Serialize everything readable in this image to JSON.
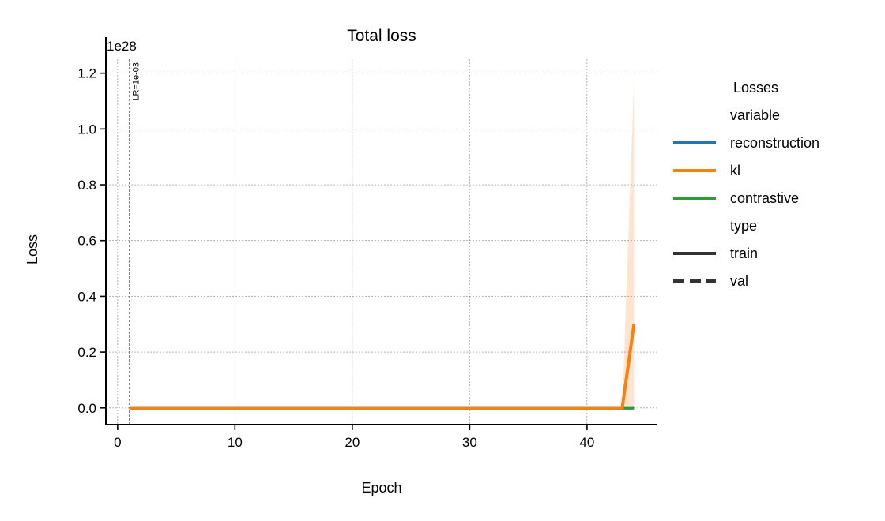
{
  "chart_data": {
    "type": "line",
    "title": "Total loss",
    "xlabel": "Epoch",
    "ylabel": "Loss",
    "y_offset_label": "1e28",
    "y_scale": 1e+28,
    "xlim": [
      -1,
      46
    ],
    "ylim": [
      -0.06,
      1.25
    ],
    "x_ticks": [
      0,
      10,
      20,
      30,
      40
    ],
    "y_ticks": [
      0.0,
      0.2,
      0.4,
      0.6,
      0.8,
      1.0,
      1.2
    ],
    "grid": true,
    "annotation": {
      "x": 1,
      "text": "LR=1e-03"
    },
    "legend": {
      "title": "Losses",
      "placement": "outside-right",
      "groups": [
        {
          "header": "variable",
          "entries": [
            {
              "label": "reconstruction",
              "color": "#1f77b4",
              "style": "solid"
            },
            {
              "label": "kl",
              "color": "#ff7f0e",
              "style": "solid"
            },
            {
              "label": "contrastive",
              "color": "#2ca02c",
              "style": "solid"
            }
          ]
        },
        {
          "header": "type",
          "entries": [
            {
              "label": "train",
              "color": "#333333",
              "style": "solid"
            },
            {
              "label": "val",
              "color": "#333333",
              "style": "dashed"
            }
          ]
        }
      ]
    },
    "series": [
      {
        "name": "reconstruction",
        "type": "train",
        "color": "#1f77b4",
        "x_start": 1,
        "x_end": 44,
        "values": "zeros"
      },
      {
        "name": "contrastive",
        "type": "train",
        "color": "#2ca02c",
        "x_start": 1,
        "x_end": 44,
        "values": "zeros"
      },
      {
        "name": "kl",
        "type": "train",
        "color": "#ff7f0e",
        "x": [
          1,
          43,
          44
        ],
        "y": [
          0.0,
          0.0,
          0.3
        ],
        "band_x": [
          43,
          44
        ],
        "band_low": [
          0.0,
          0.0
        ],
        "band_high": [
          0.0,
          1.17
        ]
      }
    ]
  }
}
